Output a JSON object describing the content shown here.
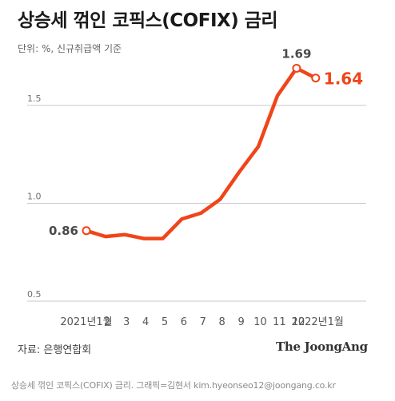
{
  "header": {
    "title": "상승세 꺾인 코픽스(COFIX) 금리",
    "subtitle": "단위: %, 신규취급액 기준"
  },
  "footer": {
    "source": "자료: 은행연합회",
    "brand": "The JoongAng",
    "caption": "상승세 꺾인 코픽스(COFIX) 금리. 그래픽=김현서 kim.hyeonseo12@joongang.co.kr"
  },
  "colors": {
    "line": "#f04419",
    "last_value": "#f04419",
    "grid": "#c8c8c8",
    "text": "#1a1a1a",
    "axis_text": "#6e6e6e"
  },
  "chart_data": {
    "type": "line",
    "title": "상승세 꺾인 코픽스(COFIX) 금리",
    "subtitle": "단위: %, 신규취급액 기준",
    "categories": [
      "2021년1월",
      "2",
      "3",
      "4",
      "5",
      "6",
      "7",
      "8",
      "9",
      "10",
      "11",
      "12",
      "2022년1월"
    ],
    "series": [
      {
        "values": [
          0.86,
          0.83,
          0.84,
          0.82,
          0.82,
          0.92,
          0.95,
          1.02,
          1.16,
          1.29,
          1.55,
          1.69,
          1.64
        ]
      }
    ],
    "x_ticks": [
      {
        "label": "2021년1월",
        "pos": 0
      },
      {
        "label": "2",
        "pos": 1.1
      },
      {
        "label": "3",
        "pos": 2.1
      },
      {
        "label": "4",
        "pos": 3.1
      },
      {
        "label": "5",
        "pos": 4.1
      },
      {
        "label": "6",
        "pos": 5.1
      },
      {
        "label": "7",
        "pos": 6.1
      },
      {
        "label": "8",
        "pos": 7.1
      },
      {
        "label": "9",
        "pos": 8.1
      },
      {
        "label": "10",
        "pos": 9.1
      },
      {
        "label": "11",
        "pos": 10.1
      },
      {
        "label": "12",
        "pos": 11.1
      },
      {
        "label": "2022년1월",
        "pos": 12.1
      }
    ],
    "yticks": [
      0.5,
      1.0,
      1.5
    ],
    "ytick_labels": [
      "0.5",
      "1.0",
      "1.5"
    ],
    "ylim": [
      0.5,
      1.7
    ],
    "grid": true,
    "annotations": [
      {
        "index": 0,
        "label": "0.86",
        "style": "plain"
      },
      {
        "index": 11,
        "label": "1.69",
        "style": "plain"
      },
      {
        "index": 12,
        "label": "1.64",
        "style": "highlight"
      }
    ],
    "markers_at": [
      0,
      11,
      12
    ]
  }
}
